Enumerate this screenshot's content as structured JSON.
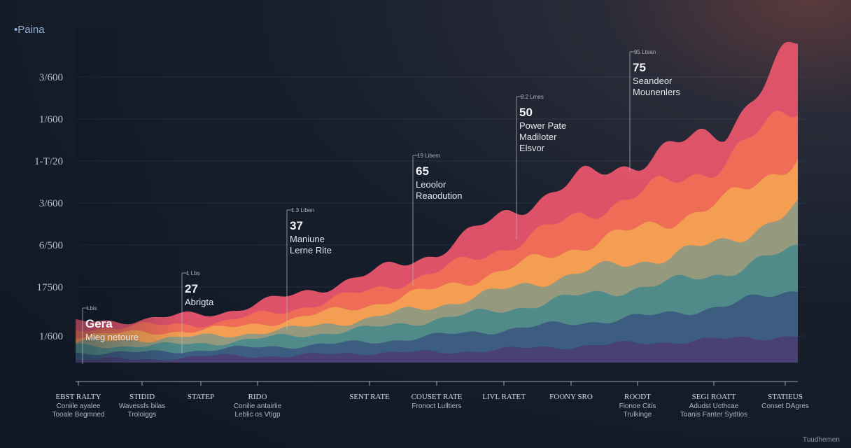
{
  "brand": "•Paina",
  "footer": "Tuudhemen",
  "chart_data": {
    "type": "area",
    "stacked": true,
    "yticks": [
      "3/600",
      "1/600",
      "1-T/20",
      "3/600",
      "6/500",
      "17500",
      "1/600"
    ],
    "x_categories": [
      {
        "label": "EBST RALTY",
        "sub": [
          "Coniile ayalee",
          "Tooale Begmned"
        ]
      },
      {
        "label": "STIDID",
        "sub": [
          "Wavessfs bilas",
          "Troloiggs"
        ]
      },
      {
        "label": "STATEP",
        "sub": []
      },
      {
        "label": "RIDO",
        "sub": [
          "Conilie antairlie",
          "Leblic os Vtigp"
        ]
      },
      {
        "label": "SENT RATE",
        "sub": []
      },
      {
        "label": "COUSET RATE",
        "sub": [
          "Fronoct Lulltiers"
        ]
      },
      {
        "label": "LIVL RATET",
        "sub": []
      },
      {
        "label": "FOONY SRO",
        "sub": []
      },
      {
        "label": "ROODT",
        "sub": [
          "Fionoe Citis",
          "Trulkinge"
        ]
      },
      {
        "label": "SEGI ROATT",
        "sub": [
          "Adudst Ucthcae",
          "Toanis Fanter Sydtios"
        ]
      },
      {
        "label": "STATIEUS",
        "sub": [
          "Conset DAgres"
        ]
      }
    ],
    "series_top": [
      {
        "color": "#e8556c",
        "values": [
          12,
          13,
          15,
          20,
          26,
          33,
          45,
          55,
          62,
          70,
          95
        ]
      },
      {
        "color": "#ef6e55",
        "values": [
          10,
          11,
          12,
          16,
          21,
          27,
          35,
          44,
          52,
          60,
          78
        ]
      },
      {
        "color": "#f2a152",
        "values": [
          8,
          9,
          10,
          13,
          17,
          22,
          28,
          35,
          41,
          48,
          62
        ]
      },
      {
        "color": "#8f9a82",
        "values": [
          6,
          7,
          8,
          10,
          13,
          17,
          22,
          27,
          31,
          36,
          46
        ]
      },
      {
        "color": "#4d8a8a",
        "values": [
          5,
          5,
          6,
          8,
          10,
          13,
          16,
          20,
          23,
          27,
          34
        ]
      },
      {
        "color": "#3b5a7f",
        "values": [
          3,
          3,
          4,
          5,
          6,
          8,
          10,
          12,
          14,
          17,
          22
        ]
      },
      {
        "color": "#4a3f73",
        "values": [
          1,
          1,
          2,
          2,
          3,
          3,
          4,
          5,
          6,
          7,
          8
        ]
      }
    ],
    "annotations": [
      {
        "small": "Lbis",
        "value": "Gera",
        "text": [
          "Mieg netoure"
        ]
      },
      {
        "small": "1 Lbs",
        "value": "27",
        "text": [
          "Abrigta"
        ]
      },
      {
        "small": "1.3 Liben",
        "value": "37",
        "text": [
          "Maniune",
          "Lerne Rite"
        ]
      },
      {
        "small": "19 Libern",
        "value": "65",
        "text": [
          "Leoolor",
          "Reaodution"
        ]
      },
      {
        "small": "9.2 Lmes",
        "value": "50",
        "text": [
          "Power Pate",
          "Madiloter",
          "Elsvor"
        ]
      },
      {
        "small": "95 Ltean",
        "value": "75",
        "text": [
          "Seandeor",
          "Mounenlers"
        ]
      }
    ]
  }
}
